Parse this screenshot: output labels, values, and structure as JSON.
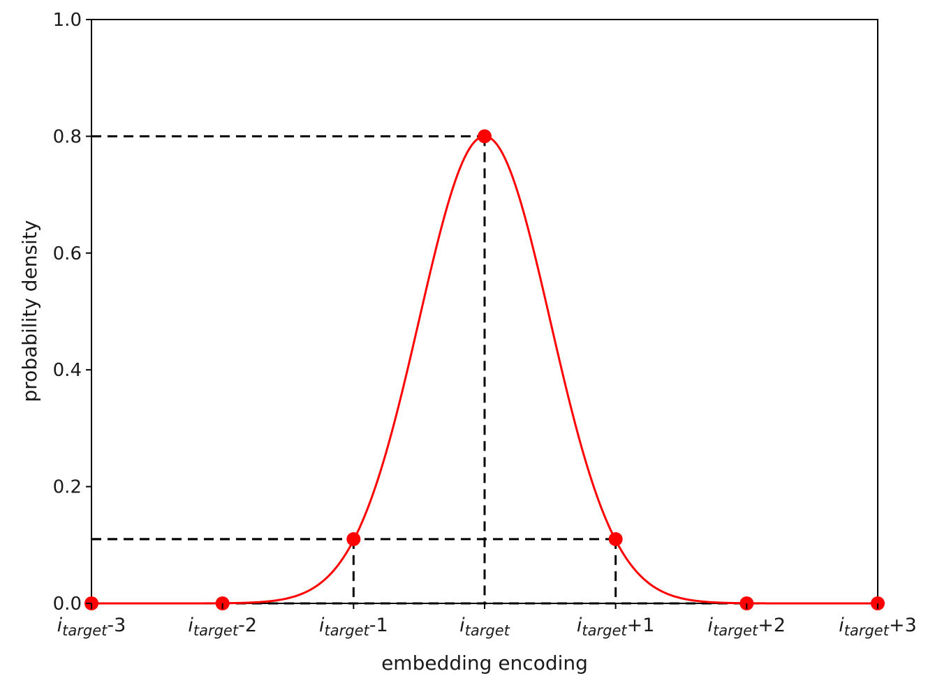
{
  "chart_data": {
    "type": "line",
    "title": "",
    "xlabel": "embedding encoding",
    "ylabel": "probability density",
    "xlim": [
      -3,
      3
    ],
    "ylim": [
      0,
      1.0
    ],
    "y_ticks": [
      "0.0",
      "0.2",
      "0.4",
      "0.6",
      "0.8",
      "1.0"
    ],
    "x_ticks": [
      {
        "x": -3,
        "base": "i",
        "sub": "target",
        "suffix": "-3"
      },
      {
        "x": -2,
        "base": "i",
        "sub": "target",
        "suffix": "-2"
      },
      {
        "x": -1,
        "base": "i",
        "sub": "target",
        "suffix": "-1"
      },
      {
        "x": 0,
        "base": "i",
        "sub": "target",
        "suffix": ""
      },
      {
        "x": 1,
        "base": "i",
        "sub": "target",
        "suffix": "+1"
      },
      {
        "x": 2,
        "base": "i",
        "sub": "target",
        "suffix": "+2"
      },
      {
        "x": 3,
        "base": "i",
        "sub": "target",
        "suffix": "+3"
      }
    ],
    "curve": {
      "peak": 0.8,
      "sigma": 0.5,
      "color": "#ff0000"
    },
    "points": {
      "x": [
        -3,
        -2,
        -1,
        0,
        1,
        2,
        3
      ],
      "y": [
        0.0,
        0.0,
        0.11,
        0.8,
        0.11,
        0.0,
        0.0
      ],
      "color": "#ff0000"
    },
    "reference_lines": [
      {
        "x": 0,
        "y": 0.8
      },
      {
        "x": -1,
        "y": 0.11
      },
      {
        "x": 1,
        "y": 0.11
      }
    ],
    "grid": false,
    "legend": "none"
  }
}
